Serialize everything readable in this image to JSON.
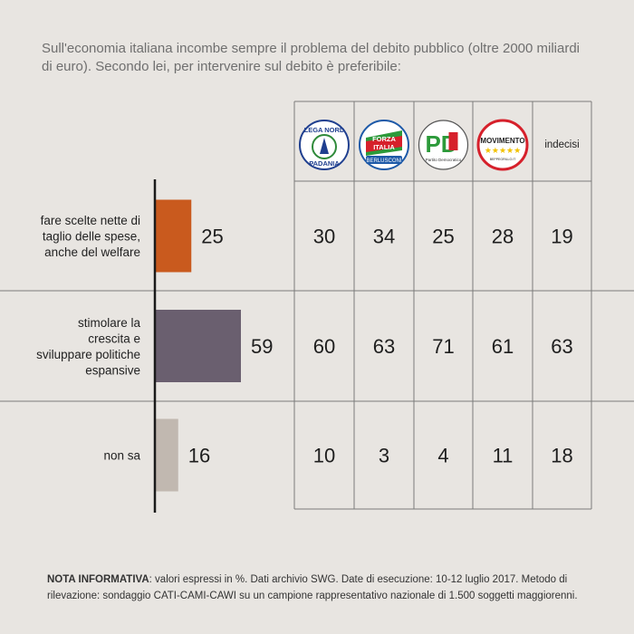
{
  "question": "Sull'economia italiana incombe sempre il problema del debito pubblico (oltre 2000 miliardi di euro). Secondo lei, per intervenire sul debito è preferibile:",
  "columns": [
    {
      "key": "lega",
      "logo": "lega-nord-logo",
      "logo_text": [
        "LEGA NORD",
        "PADANIA"
      ]
    },
    {
      "key": "forza",
      "logo": "forza-italia-logo",
      "logo_text": [
        "FORZA",
        "ITALIA",
        "BERLUSCONI"
      ]
    },
    {
      "key": "pd",
      "logo": "pd-logo",
      "logo_text": [
        "PD",
        "Partito Democratico"
      ]
    },
    {
      "key": "m5s",
      "logo": "movimento-5-stelle-logo",
      "logo_text": [
        "MOVIMENTO",
        "★★★★★",
        "BEPPEGRILLO.IT"
      ]
    },
    {
      "key": "indecisi",
      "label": "indecisi"
    }
  ],
  "chart_data": {
    "type": "bar",
    "orientation": "horizontal",
    "categories": [
      [
        "fare scelte nette di",
        "taglio delle spese,",
        "anche del welfare"
      ],
      [
        "stimolare la",
        "crescita e",
        "sviluppare politiche",
        "espansive"
      ],
      [
        "non sa"
      ]
    ],
    "values": [
      25,
      59,
      16
    ],
    "colors": [
      "#c95a1e",
      "#6a5f6f",
      "#c1b8b0"
    ],
    "table": [
      [
        30,
        34,
        25,
        28,
        19
      ],
      [
        60,
        63,
        71,
        61,
        63
      ],
      [
        10,
        3,
        4,
        11,
        18
      ]
    ],
    "unit": "%"
  },
  "note": {
    "label": "NOTA INFORMATIVA",
    "text": ": valori espressi in %. Dati archivio SWG. Date di esecuzione: 10-12 luglio 2017. Metodo di rilevazione: sondaggio CATI-CAMI-CAWI su un campione rappresentativo nazionale di 1.500 soggetti maggiorenni."
  },
  "colors": {
    "background": "#e8e5e1",
    "lega_green": "#2f8a3a",
    "lega_blue": "#1f3f8f",
    "forza_blue": "#1e5aa8",
    "forza_red": "#d6202b",
    "forza_green": "#2c9a3a",
    "pd_red": "#d6202b",
    "pd_green": "#2c9a3a",
    "m5s_red": "#d6202b",
    "m5s_yellow": "#f2c200"
  }
}
